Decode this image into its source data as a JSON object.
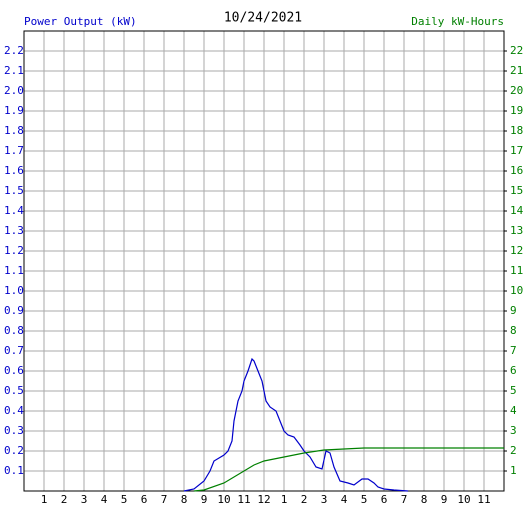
{
  "chart_data": {
    "type": "line",
    "title": "10/24/2021",
    "y_label": "Power Output (kW)",
    "y2_label": "Daily kW-Hours",
    "xlim": [
      0,
      24
    ],
    "xticks": [
      1,
      2,
      3,
      4,
      5,
      6,
      7,
      8,
      9,
      10,
      11,
      12,
      {
        "value": 13,
        "label": "1"
      },
      {
        "value": 14,
        "label": "2"
      },
      {
        "value": 15,
        "label": "3"
      },
      {
        "value": 16,
        "label": "4"
      },
      {
        "value": 17,
        "label": "5"
      },
      {
        "value": 18,
        "label": "6"
      },
      {
        "value": 19,
        "label": "7"
      },
      {
        "value": 20,
        "label": "8"
      },
      {
        "value": 21,
        "label": "9"
      },
      {
        "value": 22,
        "label": "10"
      },
      {
        "value": 23,
        "label": "11"
      }
    ],
    "ylim": [
      0,
      2.3
    ],
    "yticks": [
      0.1,
      0.2,
      0.3,
      0.4,
      0.5,
      0.6,
      0.7,
      0.8,
      0.9,
      {
        "value": 1,
        "label": "1.0"
      },
      1.1,
      1.2,
      1.3,
      1.4,
      1.5,
      1.6,
      1.7,
      1.8,
      1.9,
      {
        "value": 2,
        "label": "2.0"
      },
      2.1,
      2.2
    ],
    "y2lim": [
      0,
      23
    ],
    "y2ticks": [
      1,
      2,
      3,
      4,
      5,
      6,
      7,
      8,
      9,
      10,
      11,
      12,
      13,
      14,
      15,
      16,
      17,
      18,
      19,
      20,
      21,
      22
    ],
    "grid": true,
    "series": [
      {
        "color": "#0000cc",
        "x": [
          8,
          8.5,
          9,
          9.3,
          9.5,
          10,
          10.2,
          10.4,
          10.5,
          10.7,
          10.9,
          11,
          11.2,
          11.4,
          11.5,
          11.7,
          11.9,
          12.1,
          12.3,
          12.6,
          12.8,
          13,
          13.2,
          13.5,
          13.8,
          14,
          14.3,
          14.6,
          14.9,
          15.1,
          15.3,
          15.5,
          15.8,
          16.2,
          16.5,
          16.9,
          17.2,
          17.5,
          17.7,
          18,
          18.5,
          19.2
        ],
        "values": [
          0,
          0.01,
          0.05,
          0.1,
          0.15,
          0.18,
          0.2,
          0.25,
          0.35,
          0.45,
          0.5,
          0.55,
          0.6,
          0.66,
          0.65,
          0.6,
          0.55,
          0.45,
          0.42,
          0.4,
          0.35,
          0.3,
          0.28,
          0.27,
          0.23,
          0.2,
          0.17,
          0.12,
          0.11,
          0.2,
          0.19,
          0.12,
          0.05,
          0.04,
          0.03,
          0.06,
          0.06,
          0.04,
          0.02,
          0.01,
          0.005,
          0
        ]
      },
      {
        "color": "#008000",
        "axis": "y2",
        "x": [
          8.5,
          9,
          10,
          11,
          11.5,
          12,
          13,
          14,
          15,
          16,
          17,
          18,
          24
        ],
        "values": [
          0,
          0.05,
          0.4,
          1.0,
          1.3,
          1.5,
          1.7,
          1.9,
          2.05,
          2.1,
          2.15,
          2.15,
          2.15
        ]
      }
    ]
  }
}
